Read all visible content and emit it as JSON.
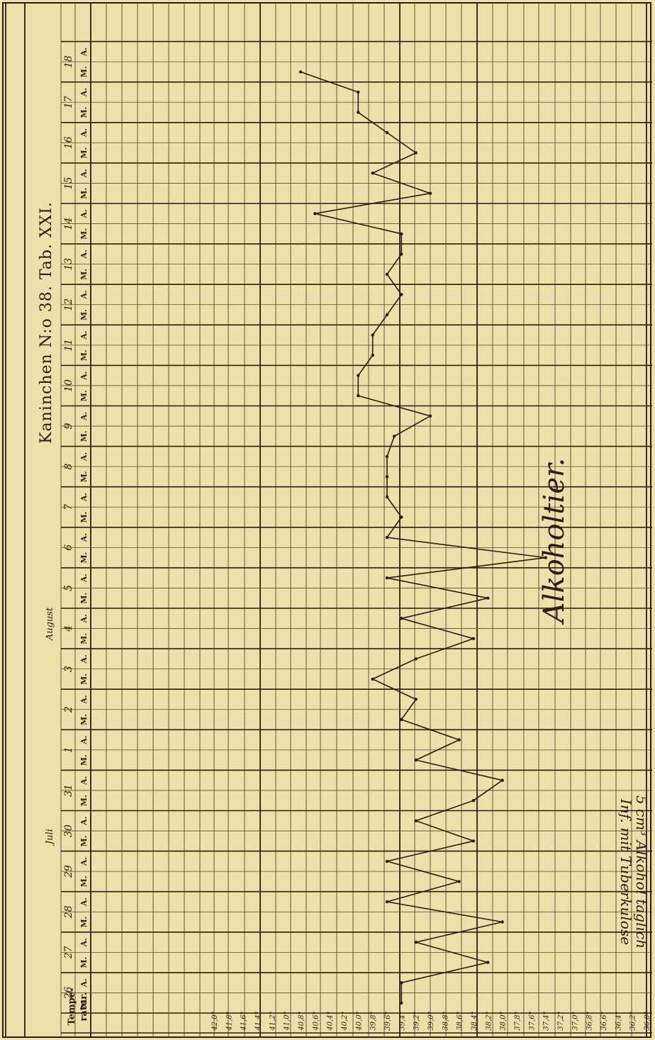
{
  "title": "Kaninchen N:o 38.   Tab. XXI.",
  "annotation": "Alkoholtier.",
  "note_lines": [
    "Inf. mit Tuberkulose",
    "5 cm³ Alkohol täglich"
  ],
  "header": {
    "temp_label_1": "Tempe-",
    "temp_label_2": "ratur.",
    "month_1": "Juli",
    "month_2": "August",
    "ma_labels": [
      "M.",
      "A."
    ]
  },
  "chart_data": {
    "type": "line",
    "title": "Kaninchen N:o 38.   Tab. XXI.",
    "xlabel": "",
    "ylabel": "Temperatur.",
    "ylim": [
      36.0,
      42.0
    ],
    "y_ticks": [
      "42,0°",
      "41,8°",
      "41,6°",
      "41,4°",
      "41,2°",
      "41,0°",
      "40,8°",
      "40,6°",
      "40,4°",
      "40,2°",
      "40,0°",
      "39,8°",
      "39,6°",
      "39,4°",
      "39,2°",
      "39,0°",
      "38,8°",
      "38,6°",
      "38,4°",
      "38,2°",
      "38,0°",
      "37,8°",
      "37,6°",
      "37,4°",
      "37,2°",
      "37,0°",
      "36,8°",
      "36,6°",
      "36,4°",
      "36,2°",
      "36,0°"
    ],
    "days": [
      "26",
      "27",
      "28",
      "29",
      "30",
      "31",
      "1",
      "2",
      "3",
      "4",
      "5",
      "6",
      "7",
      "8",
      "9",
      "10",
      "11",
      "12",
      "13",
      "14",
      "15",
      "16",
      "17",
      "18"
    ],
    "months": [
      {
        "name": "Juli",
        "days": [
          "26",
          "27",
          "28",
          "29",
          "30",
          "31"
        ]
      },
      {
        "name": "August",
        "days": [
          "1",
          "2",
          "3",
          "4",
          "5",
          "6",
          "7",
          "8",
          "9",
          "10",
          "11",
          "12",
          "13",
          "14",
          "15",
          "16",
          "17",
          "18"
        ]
      }
    ],
    "x": [
      "26 M.",
      "26 A.",
      "27 M.",
      "27 A.",
      "28 M.",
      "28 A.",
      "29 M.",
      "29 A.",
      "30 M.",
      "30 A.",
      "31 M.",
      "31 A.",
      "1 M.",
      "1 A.",
      "2 M.",
      "2 A.",
      "3 M.",
      "3 A.",
      "4 M.",
      "4 A.",
      "5 M.",
      "5 A.",
      "6 M.",
      "6 A.",
      "7 M.",
      "7 A.",
      "8 M.",
      "8 A.",
      "9 M.",
      "9 A.",
      "10 M.",
      "10 A.",
      "11 M.",
      "11 A.",
      "12 M.",
      "12 A.",
      "13 M.",
      "13 A.",
      "14 M.",
      "14 A.",
      "15 M.",
      "15 A.",
      "16 M.",
      "16 A.",
      "17 M.",
      "17 A.",
      "18 M.",
      "18 A."
    ],
    "series": [
      {
        "name": "",
        "values": [
          39.4,
          39.4,
          38.2,
          39.2,
          38.0,
          39.6,
          38.6,
          39.6,
          38.4,
          39.2,
          38.4,
          38.0,
          39.2,
          38.6,
          39.4,
          39.2,
          39.8,
          39.2,
          38.4,
          39.4,
          38.2,
          39.6,
          37.4,
          39.6,
          39.4,
          39.6,
          39.6,
          39.6,
          39.5,
          39.0,
          40.0,
          40.0,
          39.8,
          39.8,
          39.6,
          39.4,
          39.6,
          39.4,
          39.4,
          40.6,
          39.0,
          39.8,
          39.2,
          39.6,
          40.0,
          40.0,
          40.8,
          null
        ]
      }
    ],
    "grid": true,
    "colors": {
      "paper": "#efdfab",
      "ink": "#2a1e10",
      "grid": "#5a4630"
    }
  }
}
